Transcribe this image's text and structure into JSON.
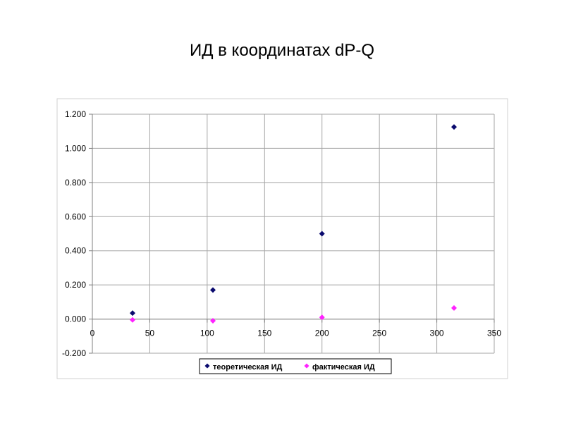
{
  "slide": {
    "title": "ИД в координатах dP-Q"
  },
  "colors": {
    "series_theoretical": "#0a0a6e",
    "series_actual": "#ff22ff",
    "grid": "#a6a6a6",
    "axis": "#7f7f7f"
  },
  "chart_data": {
    "type": "scatter",
    "title": "",
    "xlabel": "",
    "ylabel": "",
    "xlim": [
      0,
      350
    ],
    "ylim": [
      -0.2,
      1.2
    ],
    "x_ticks": [
      0,
      50,
      100,
      150,
      200,
      250,
      300,
      350
    ],
    "x_tick_labels": [
      "0",
      "50",
      "100",
      "150",
      "200",
      "250",
      "300",
      "350"
    ],
    "y_ticks": [
      -0.2,
      0,
      0.2,
      0.4,
      0.6,
      0.8,
      1.0,
      1.2
    ],
    "y_tick_labels": [
      "-0.200",
      "0.000",
      "0.200",
      "0.400",
      "0.600",
      "0.800",
      "1.000",
      "1.200"
    ],
    "grid": true,
    "legend_position": "bottom",
    "series": [
      {
        "name": "теоретическая ИД",
        "marker": "diamond",
        "x": [
          35,
          105,
          200,
          315
        ],
        "y": [
          0.035,
          0.17,
          0.5,
          1.125
        ]
      },
      {
        "name": "фактическая ИД",
        "marker": "diamond",
        "x": [
          35,
          105,
          200,
          315
        ],
        "y": [
          -0.005,
          -0.01,
          0.01,
          0.065
        ]
      }
    ]
  }
}
